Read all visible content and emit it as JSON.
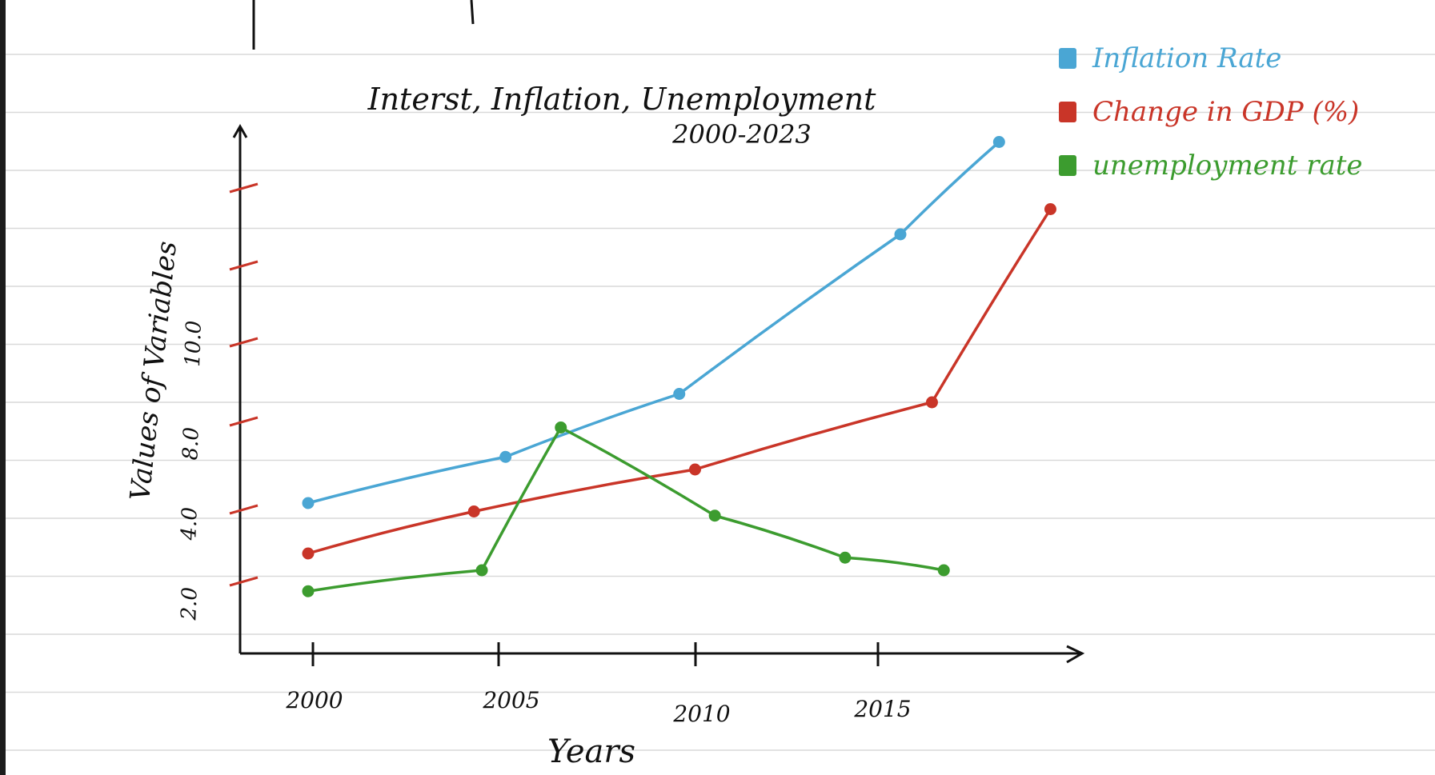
{
  "chart_data": {
    "type": "line",
    "title": "Interst, Inflation, Unemployment",
    "subtitle": "2000-2023",
    "xlabel": "Years",
    "ylabel": "Values of Variables",
    "x_ticks": [
      "2000",
      "2005",
      "2010",
      "2015"
    ],
    "y_ticks": [
      "2.0",
      "4.0",
      "8.0",
      "10.0"
    ],
    "xlim": [
      1998.3,
      2022
    ],
    "ylim": [
      1,
      16
    ],
    "grid": false,
    "legend_position": "top-right",
    "series": [
      {
        "name": "Inflation Rate",
        "color": "#4aa6d4",
        "x": [
          2000,
          2005,
          2009.4,
          2015,
          2017.5
        ],
        "y": [
          4.4,
          5.5,
          7.0,
          10.8,
          13.0
        ]
      },
      {
        "name": "Change in GDP (%)",
        "color": "#c93528",
        "x": [
          2000,
          2004.2,
          2009.8,
          2015.8,
          2018.8
        ],
        "y": [
          3.2,
          4.2,
          5.2,
          6.8,
          11.4
        ]
      },
      {
        "name": "unemployment rate",
        "color": "#3c9c2f",
        "x": [
          2000,
          2004.4,
          2006.4,
          2010.3,
          2013.6,
          2016.1
        ],
        "y": [
          2.3,
          2.8,
          6.2,
          4.1,
          3.1,
          2.8
        ]
      }
    ]
  }
}
